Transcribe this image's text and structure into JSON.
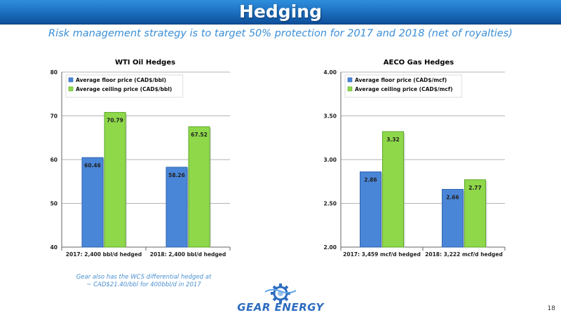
{
  "header": {
    "title": "Hedging"
  },
  "subtitle": "Risk management strategy is to target 50% protection for 2017 and 2018 (net of royalties)",
  "colors": {
    "floor": "#4a86d8",
    "ceiling": "#8ed84a",
    "header": "#1f73c4"
  },
  "chart_data": [
    {
      "type": "bar",
      "title": "WTI Oil Hedges",
      "categories": [
        "2017: 2,400 bbl/d hedged",
        "2018: 2,400 bbl/d hedged"
      ],
      "series": [
        {
          "name": "Average floor price (CAD$/bbl)",
          "values": [
            60.46,
            58.26
          ],
          "labels": [
            "60.46",
            "58.26"
          ]
        },
        {
          "name": "Average ceiling price (CAD$/bbl)",
          "values": [
            70.79,
            67.52
          ],
          "labels": [
            "70.79",
            "67.52"
          ]
        }
      ],
      "ylim": [
        40,
        80
      ],
      "yticks": [
        40,
        50,
        60,
        70,
        80
      ],
      "ytick_labels": [
        "40",
        "50",
        "60",
        "70",
        "80"
      ],
      "grid": true,
      "legend": "top-left"
    },
    {
      "type": "bar",
      "title": "AECO Gas Hedges",
      "categories": [
        "2017: 3,459 mcf/d hedged",
        "2018: 3,222 mcf/d hedged"
      ],
      "series": [
        {
          "name": "Average floor price (CAD$/mcf)",
          "values": [
            2.86,
            2.66
          ],
          "labels": [
            "2.86",
            "2.66"
          ]
        },
        {
          "name": "Average ceiling price (CAD$/mcf)",
          "values": [
            3.32,
            2.77
          ],
          "labels": [
            "3.32",
            "2.77"
          ]
        }
      ],
      "ylim": [
        2.0,
        4.0
      ],
      "yticks": [
        2.0,
        2.5,
        3.0,
        3.5,
        4.0
      ],
      "ytick_labels": [
        "2.00",
        "2.50",
        "3.00",
        "3.50",
        "4.00"
      ],
      "grid": true,
      "legend": "top-left"
    }
  ],
  "footnote": {
    "line1": "Gear also has the WCS differential hedged at",
    "line2": "~ CAD$21.40/bbl for 400bbl/d in 2017"
  },
  "logo": {
    "gear": "GEAR",
    "energy": "ENERGY",
    "icon": "gear-icon"
  },
  "page_number": "18"
}
